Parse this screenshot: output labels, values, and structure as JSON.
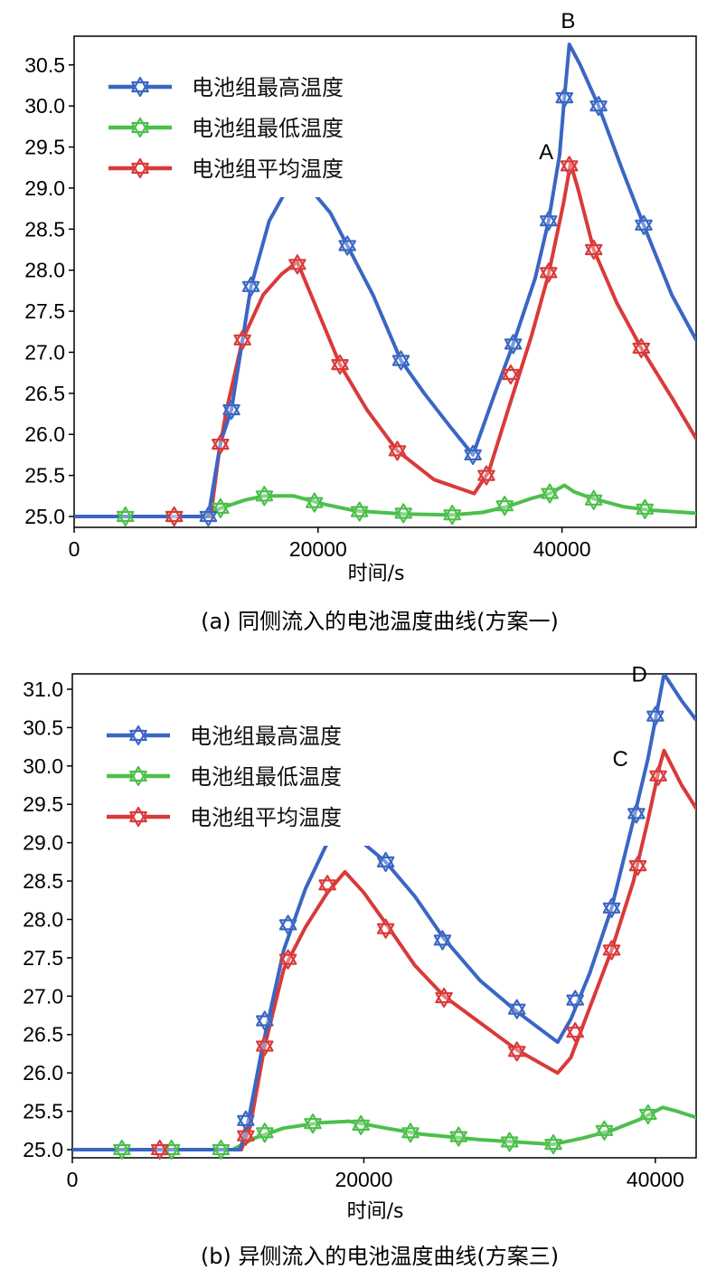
{
  "colors": {
    "max_temp": "#3a66c4",
    "min_temp": "#4cbf4c",
    "avg_temp": "#d93a3a",
    "marker_icon": "hexagram-star-icon"
  },
  "chart_data": [
    {
      "type": "line",
      "caption": "(a) 同侧流入的电池温度曲线(方案一)",
      "xlabel": "时间/s",
      "ylabel": "",
      "xlim": [
        0,
        51000
      ],
      "ylim": [
        24.95,
        30.85
      ],
      "xticks": [
        0,
        20000,
        40000
      ],
      "xtick_labels": [
        "0",
        "20000",
        "40000"
      ],
      "yticks": [
        25.0,
        25.5,
        26.0,
        26.5,
        27.0,
        27.5,
        28.0,
        28.5,
        29.0,
        29.5,
        30.0,
        30.5
      ],
      "ytick_labels": [
        "25.0",
        "25.5",
        "26.0",
        "26.5",
        "27.0",
        "27.5",
        "28.0",
        "28.5",
        "29.0",
        "29.5",
        "30.0",
        "30.5"
      ],
      "legend_position": "upper-left",
      "grid": false,
      "series": [
        {
          "name": "电池组最高温度",
          "color_key": "max_temp",
          "points": [
            [
              0,
              25.0
            ],
            [
              11000,
              25.0
            ],
            [
              12000,
              25.9
            ],
            [
              12900,
              26.3
            ],
            [
              14500,
              27.8
            ],
            [
              16000,
              28.6
            ],
            [
              17500,
              29.0
            ],
            [
              19300,
              29.0
            ],
            [
              21000,
              28.7
            ],
            [
              22400,
              28.3
            ],
            [
              24500,
              27.7
            ],
            [
              26800,
              26.9
            ],
            [
              28700,
              26.5
            ],
            [
              30800,
              26.1
            ],
            [
              32700,
              25.75
            ],
            [
              34500,
              26.5
            ],
            [
              36000,
              27.1
            ],
            [
              37800,
              27.9
            ],
            [
              38900,
              28.6
            ],
            [
              39800,
              29.4
            ],
            [
              40200,
              30.1
            ],
            [
              40600,
              30.75
            ],
            [
              41500,
              30.5
            ],
            [
              43000,
              30.0
            ],
            [
              45000,
              29.2
            ],
            [
              46700,
              28.55
            ],
            [
              49000,
              27.7
            ],
            [
              51000,
              27.15
            ]
          ],
          "marker_points": [
            [
              11000,
              25.0
            ],
            [
              12900,
              26.3
            ],
            [
              14500,
              27.8
            ],
            [
              22400,
              28.3
            ],
            [
              26800,
              26.9
            ],
            [
              32700,
              25.75
            ],
            [
              36000,
              27.1
            ],
            [
              38900,
              28.6
            ],
            [
              40200,
              30.1
            ],
            [
              43000,
              30.0
            ],
            [
              46700,
              28.55
            ]
          ]
        },
        {
          "name": "电池组最低温度",
          "color_key": "min_temp",
          "points": [
            [
              0,
              25.0
            ],
            [
              10500,
              25.0
            ],
            [
              12000,
              25.1
            ],
            [
              14000,
              25.2
            ],
            [
              15600,
              25.25
            ],
            [
              18000,
              25.25
            ],
            [
              20500,
              25.15
            ],
            [
              23000,
              25.07
            ],
            [
              27000,
              25.03
            ],
            [
              31000,
              25.02
            ],
            [
              33500,
              25.05
            ],
            [
              35500,
              25.12
            ],
            [
              37500,
              25.22
            ],
            [
              39000,
              25.28
            ],
            [
              40200,
              25.38
            ],
            [
              41000,
              25.3
            ],
            [
              42500,
              25.22
            ],
            [
              45000,
              25.12
            ],
            [
              47000,
              25.08
            ],
            [
              51000,
              25.04
            ]
          ],
          "marker_points": [
            [
              4200,
              25.0
            ],
            [
              8200,
              25.0
            ],
            [
              12000,
              25.1
            ],
            [
              15600,
              25.25
            ],
            [
              19700,
              25.17
            ],
            [
              23400,
              25.06
            ],
            [
              27000,
              25.04
            ],
            [
              31000,
              25.02
            ],
            [
              35300,
              25.13
            ],
            [
              39000,
              25.28
            ],
            [
              42600,
              25.2
            ],
            [
              46800,
              25.09
            ]
          ]
        },
        {
          "name": "电池组平均温度",
          "color_key": "avg_temp",
          "points": [
            [
              0,
              25.0
            ],
            [
              11200,
              25.0
            ],
            [
              11900,
              25.8
            ],
            [
              12500,
              26.3
            ],
            [
              13800,
              27.15
            ],
            [
              15500,
              27.7
            ],
            [
              17000,
              27.95
            ],
            [
              18300,
              28.1
            ],
            [
              19700,
              27.6
            ],
            [
              21800,
              26.85
            ],
            [
              24000,
              26.3
            ],
            [
              26500,
              25.8
            ],
            [
              29500,
              25.45
            ],
            [
              32800,
              25.28
            ],
            [
              34000,
              25.55
            ],
            [
              35800,
              26.4
            ],
            [
              37500,
              27.2
            ],
            [
              38900,
              27.95
            ],
            [
              40100,
              28.8
            ],
            [
              40700,
              29.3
            ],
            [
              41300,
              29.0
            ],
            [
              42600,
              28.25
            ],
            [
              44500,
              27.6
            ],
            [
              46500,
              27.05
            ],
            [
              49000,
              26.45
            ],
            [
              51000,
              25.95
            ]
          ],
          "marker_points": [
            [
              8200,
              25.0
            ],
            [
              12000,
              25.88
            ],
            [
              13800,
              27.15
            ],
            [
              18300,
              28.07
            ],
            [
              21800,
              26.85
            ],
            [
              26500,
              25.8
            ],
            [
              33800,
              25.5
            ],
            [
              35800,
              26.73
            ],
            [
              38900,
              27.97
            ],
            [
              40600,
              29.27
            ],
            [
              42600,
              28.25
            ],
            [
              46500,
              27.05
            ]
          ]
        }
      ],
      "annotations": [
        {
          "text": "A",
          "x": 38700,
          "y": 29.35
        },
        {
          "text": "B",
          "x": 40500,
          "y": 30.95
        }
      ]
    },
    {
      "type": "line",
      "caption": "(b) 异侧流入的电池温度曲线(方案三)",
      "xlabel": "时间/s",
      "ylabel": "",
      "xlim": [
        0,
        42800
      ],
      "ylim": [
        24.95,
        31.2
      ],
      "xticks": [
        0,
        20000,
        40000
      ],
      "xtick_labels": [
        "0",
        "20000",
        "40000"
      ],
      "yticks": [
        25.0,
        25.5,
        26.0,
        26.5,
        27.0,
        27.5,
        28.0,
        28.5,
        29.0,
        29.5,
        30.0,
        30.5,
        31.0
      ],
      "ytick_labels": [
        "25.0",
        "25.5",
        "26.0",
        "26.5",
        "27.0",
        "27.5",
        "28.0",
        "28.5",
        "29.0",
        "29.5",
        "30.0",
        "30.5",
        "31.0"
      ],
      "legend_position": "upper-left",
      "grid": false,
      "series": [
        {
          "name": "电池组最高温度",
          "color_key": "max_temp",
          "points": [
            [
              0,
              25.0
            ],
            [
              11500,
              25.0
            ],
            [
              12000,
              25.3
            ],
            [
              13000,
              26.3
            ],
            [
              14500,
              27.6
            ],
            [
              16000,
              28.4
            ],
            [
              17500,
              29.0
            ],
            [
              19300,
              29.1
            ],
            [
              21500,
              28.75
            ],
            [
              23500,
              28.3
            ],
            [
              25500,
              27.75
            ],
            [
              28000,
              27.2
            ],
            [
              30500,
              26.8
            ],
            [
              33300,
              26.4
            ],
            [
              34200,
              26.7
            ],
            [
              35500,
              27.3
            ],
            [
              37000,
              28.15
            ],
            [
              38500,
              29.3
            ],
            [
              39500,
              30.1
            ],
            [
              40300,
              30.9
            ],
            [
              40600,
              31.2
            ],
            [
              41800,
              30.85
            ],
            [
              42800,
              30.6
            ]
          ],
          "marker_points": [
            [
              11900,
              25.38
            ],
            [
              13200,
              26.68
            ],
            [
              14800,
              27.93
            ],
            [
              17400,
              29.06
            ],
            [
              21500,
              28.75
            ],
            [
              25400,
              27.73
            ],
            [
              30500,
              26.83
            ],
            [
              34500,
              26.95
            ],
            [
              37000,
              28.15
            ],
            [
              38700,
              29.38
            ],
            [
              40000,
              30.65
            ]
          ]
        },
        {
          "name": "电池组最低温度",
          "color_key": "min_temp",
          "points": [
            [
              0,
              25.0
            ],
            [
              11000,
              25.0
            ],
            [
              12500,
              25.15
            ],
            [
              14500,
              25.28
            ],
            [
              17000,
              25.35
            ],
            [
              19000,
              25.37
            ],
            [
              21500,
              25.28
            ],
            [
              24000,
              25.2
            ],
            [
              28000,
              25.13
            ],
            [
              33000,
              25.07
            ],
            [
              35000,
              25.15
            ],
            [
              37000,
              25.25
            ],
            [
              39000,
              25.4
            ],
            [
              40500,
              25.55
            ],
            [
              41500,
              25.5
            ],
            [
              42800,
              25.42
            ]
          ],
          "marker_points": [
            [
              3400,
              25.0
            ],
            [
              6800,
              25.0
            ],
            [
              10200,
              25.0
            ],
            [
              13200,
              25.22
            ],
            [
              16500,
              25.34
            ],
            [
              19800,
              25.32
            ],
            [
              23200,
              25.22
            ],
            [
              26500,
              25.17
            ],
            [
              30000,
              25.1
            ],
            [
              33000,
              25.07
            ],
            [
              36500,
              25.25
            ],
            [
              39500,
              25.46
            ]
          ]
        },
        {
          "name": "电池组平均温度",
          "color_key": "avg_temp",
          "points": [
            [
              0,
              25.0
            ],
            [
              11600,
              25.0
            ],
            [
              12200,
              25.3
            ],
            [
              13200,
              26.35
            ],
            [
              14500,
              27.35
            ],
            [
              16000,
              27.9
            ],
            [
              17500,
              28.35
            ],
            [
              18700,
              28.62
            ],
            [
              20000,
              28.35
            ],
            [
              21500,
              27.95
            ],
            [
              23500,
              27.4
            ],
            [
              25500,
              27.0
            ],
            [
              28000,
              26.65
            ],
            [
              30500,
              26.3
            ],
            [
              33300,
              26.0
            ],
            [
              34200,
              26.2
            ],
            [
              35500,
              26.85
            ],
            [
              37000,
              27.6
            ],
            [
              38500,
              28.5
            ],
            [
              39500,
              29.3
            ],
            [
              40300,
              30.0
            ],
            [
              40600,
              30.2
            ],
            [
              41800,
              29.75
            ],
            [
              42800,
              29.45
            ]
          ],
          "marker_points": [
            [
              6000,
              25.0
            ],
            [
              11900,
              25.18
            ],
            [
              13200,
              26.35
            ],
            [
              14800,
              27.48
            ],
            [
              17500,
              28.45
            ],
            [
              21500,
              27.88
            ],
            [
              25500,
              26.98
            ],
            [
              30500,
              26.28
            ],
            [
              34500,
              26.53
            ],
            [
              37000,
              27.6
            ],
            [
              38800,
              28.7
            ],
            [
              40200,
              29.87
            ]
          ]
        }
      ],
      "annotations": [
        {
          "text": "C",
          "x": 37600,
          "y": 30.0
        },
        {
          "text": "D",
          "x": 38900,
          "y": 31.1
        }
      ]
    }
  ]
}
